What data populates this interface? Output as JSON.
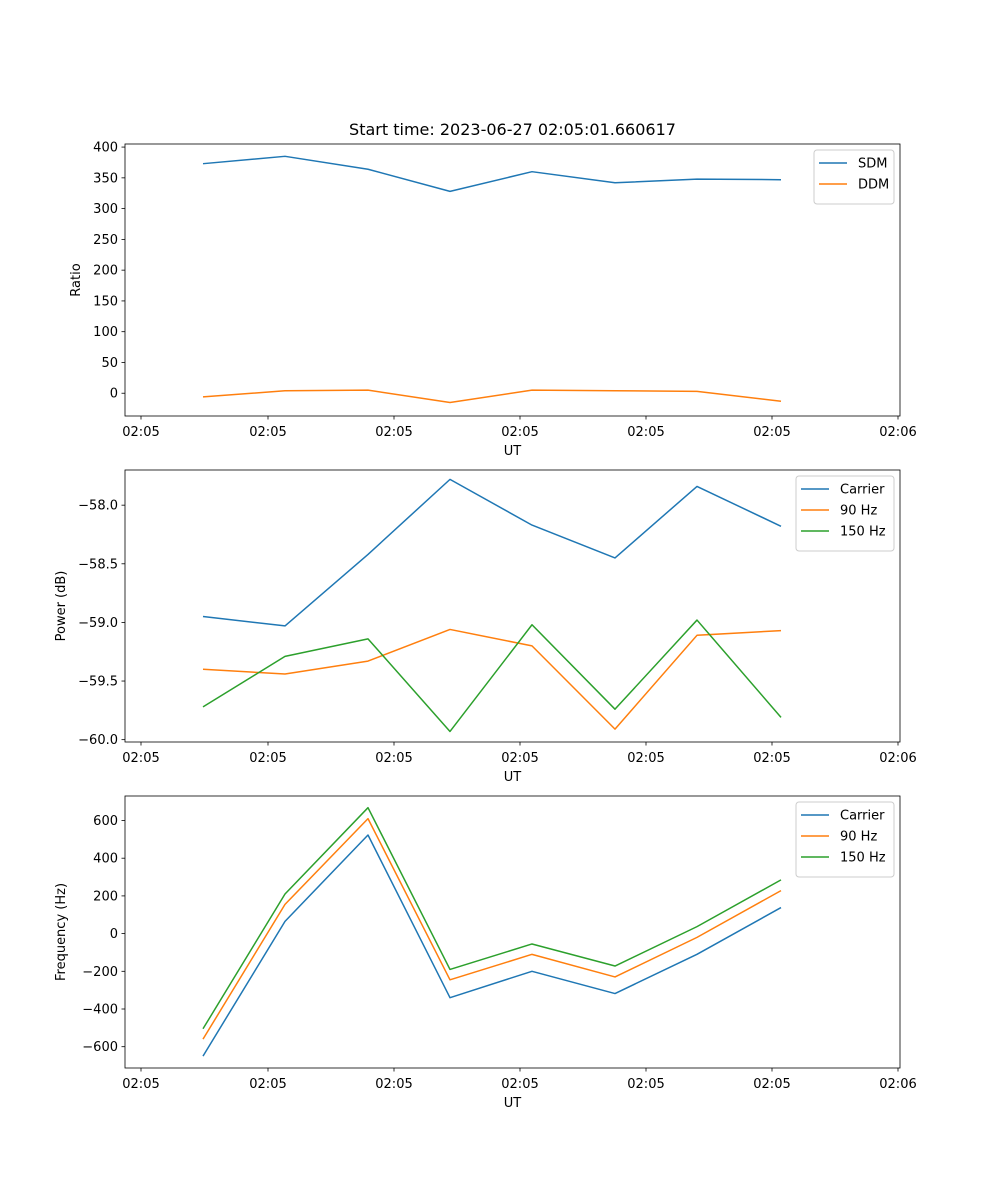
{
  "title": "Start time: 2023-06-27 02:05:01.660617",
  "colors": {
    "blue": "#1f77b4",
    "orange": "#ff7f0e",
    "green": "#2ca02c"
  },
  "chart_data": [
    {
      "type": "line",
      "xlabel": "UT",
      "ylabel": "Ratio",
      "x_tick_labels": [
        "02:05",
        "02:05",
        "02:05",
        "02:05",
        "02:05",
        "02:05",
        "02:06"
      ],
      "yticks": [
        0,
        50,
        100,
        150,
        200,
        250,
        300,
        350,
        400
      ],
      "ylim": [
        -37,
        405
      ],
      "legend_position": "top-right",
      "series": [
        {
          "name": "SDM",
          "color": "#1f77b4",
          "values": [
            373,
            385,
            364,
            328,
            360,
            342,
            348,
            347
          ]
        },
        {
          "name": "DDM",
          "color": "#ff7f0e",
          "values": [
            -6,
            4,
            5,
            -15,
            5,
            4,
            3,
            -13
          ]
        }
      ]
    },
    {
      "type": "line",
      "xlabel": "UT",
      "ylabel": "Power (dB)",
      "x_tick_labels": [
        "02:05",
        "02:05",
        "02:05",
        "02:05",
        "02:05",
        "02:05",
        "02:06"
      ],
      "yticks": [
        -60.0,
        -59.5,
        -59.0,
        -58.5,
        -58.0
      ],
      "ytick_labels": [
        "−60.0",
        "−59.5",
        "−59.0",
        "−58.5",
        "−58.0"
      ],
      "ylim": [
        -60.02,
        -57.7
      ],
      "legend_position": "top-right",
      "series": [
        {
          "name": "Carrier",
          "color": "#1f77b4",
          "values": [
            -58.95,
            -59.03,
            -58.42,
            -57.78,
            -58.17,
            -58.45,
            -57.84,
            -58.18
          ]
        },
        {
          "name": "90 Hz",
          "color": "#ff7f0e",
          "values": [
            -59.4,
            -59.44,
            -59.33,
            -59.06,
            -59.2,
            -59.91,
            -59.11,
            -59.07
          ]
        },
        {
          "name": "150 Hz",
          "color": "#2ca02c",
          "values": [
            -59.72,
            -59.29,
            -59.14,
            -59.93,
            -59.02,
            -59.74,
            -58.98,
            -59.81
          ]
        }
      ]
    },
    {
      "type": "line",
      "xlabel": "UT",
      "ylabel": "Frequency (Hz)",
      "x_tick_labels": [
        "02:05",
        "02:05",
        "02:05",
        "02:05",
        "02:05",
        "02:05",
        "02:06"
      ],
      "yticks": [
        -600,
        -400,
        -200,
        0,
        200,
        400,
        600
      ],
      "ytick_labels": [
        "−600",
        "−400",
        "−200",
        "0",
        "200",
        "400",
        "600"
      ],
      "ylim": [
        -713,
        730
      ],
      "legend_position": "top-right",
      "series": [
        {
          "name": "Carrier",
          "color": "#1f77b4",
          "values": [
            -650,
            65,
            523,
            -340,
            -200,
            -318,
            -110,
            138
          ]
        },
        {
          "name": "90 Hz",
          "color": "#ff7f0e",
          "values": [
            -560,
            155,
            610,
            -245,
            -110,
            -230,
            -20,
            228
          ]
        },
        {
          "name": "150 Hz",
          "color": "#2ca02c",
          "values": [
            -505,
            210,
            668,
            -190,
            -55,
            -172,
            37,
            285
          ]
        }
      ]
    }
  ]
}
